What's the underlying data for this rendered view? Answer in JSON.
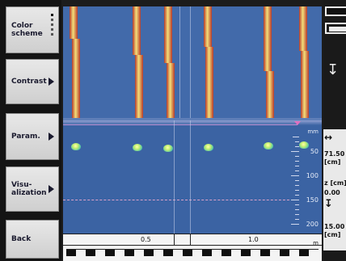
{
  "menu": {
    "items": [
      {
        "label": "Color\nscheme",
        "has_arrow": false
      },
      {
        "label": "Contrast",
        "has_arrow": true
      },
      {
        "label": "Param.",
        "has_arrow": true
      },
      {
        "label": "Visu-\nalization",
        "has_arrow": true
      },
      {
        "label": "Back",
        "has_arrow": false
      }
    ]
  },
  "depth_scale": {
    "unit": "mm",
    "labels": [
      "50",
      "100",
      "150",
      "200"
    ]
  },
  "distance_scale": {
    "unit": "m",
    "labels": [
      "0.5",
      "1.0"
    ]
  },
  "side_panel": {
    "distance_value": "71.50",
    "distance_unit": "[cm]",
    "z_label": "z [cm]",
    "z_value": "0.00",
    "depth_value": "15.00",
    "depth_unit": "[cm]"
  },
  "colors": {
    "background": "#426aaa",
    "stripe_red": "#b83a2a",
    "stripe_yellow": "#f3e07a",
    "detection": "#c8f070"
  }
}
